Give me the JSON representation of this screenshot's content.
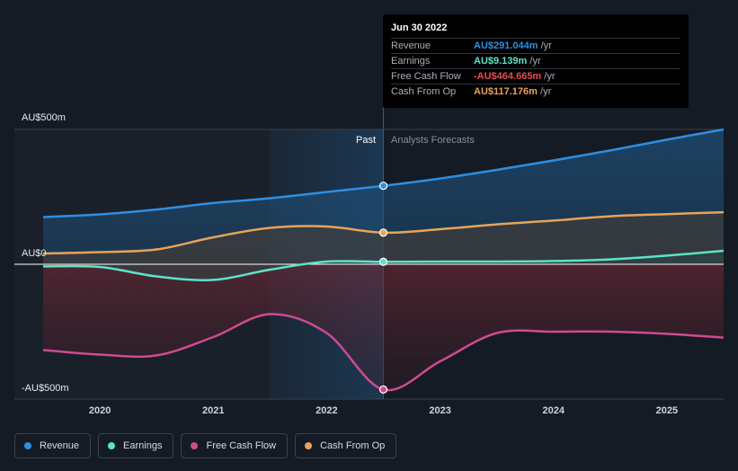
{
  "chart_data": {
    "type": "line",
    "x_ticks": [
      "2020",
      "2021",
      "2022",
      "2023",
      "2024",
      "2025"
    ],
    "y_labels": [
      "AU$500m",
      "AU$0",
      "-AU$500m"
    ],
    "ylim": [
      -500,
      500
    ],
    "regions": {
      "past_label": "Past",
      "forecast_label": "Analysts Forecasts"
    },
    "series": [
      {
        "name": "Revenue",
        "color": "#2d8fe3",
        "points": [
          [
            2019.5,
            175
          ],
          [
            2020.0,
            185
          ],
          [
            2020.5,
            203
          ],
          [
            2021.0,
            227
          ],
          [
            2021.5,
            245
          ],
          [
            2022.0,
            268
          ],
          [
            2022.5,
            291
          ],
          [
            2023.0,
            318
          ],
          [
            2023.5,
            350
          ],
          [
            2024.0,
            385
          ],
          [
            2024.5,
            422
          ],
          [
            2025.0,
            462
          ],
          [
            2025.5,
            500
          ]
        ]
      },
      {
        "name": "Earnings",
        "color": "#5ce3c8",
        "points": [
          [
            2019.5,
            -8
          ],
          [
            2020.0,
            -10
          ],
          [
            2020.5,
            -45
          ],
          [
            2021.0,
            -58
          ],
          [
            2021.5,
            -20
          ],
          [
            2022.0,
            10
          ],
          [
            2022.5,
            9.139
          ],
          [
            2023.0,
            10
          ],
          [
            2023.5,
            10
          ],
          [
            2024.0,
            12
          ],
          [
            2024.5,
            18
          ],
          [
            2025.0,
            32
          ],
          [
            2025.5,
            50
          ]
        ]
      },
      {
        "name": "Free Cash Flow",
        "color": "#cf4a91",
        "points": [
          [
            2019.5,
            -318
          ],
          [
            2020.0,
            -335
          ],
          [
            2020.5,
            -338
          ],
          [
            2021.0,
            -270
          ],
          [
            2021.5,
            -185
          ],
          [
            2022.0,
            -255
          ],
          [
            2022.5,
            -464.665
          ],
          [
            2023.0,
            -360
          ],
          [
            2023.5,
            -255
          ],
          [
            2024.0,
            -250
          ],
          [
            2024.5,
            -250
          ],
          [
            2025.0,
            -258
          ],
          [
            2025.5,
            -272
          ]
        ]
      },
      {
        "name": "Cash From Op",
        "color": "#e5a45b",
        "points": [
          [
            2019.5,
            40
          ],
          [
            2020.0,
            45
          ],
          [
            2020.5,
            55
          ],
          [
            2021.0,
            100
          ],
          [
            2021.5,
            135
          ],
          [
            2022.0,
            140
          ],
          [
            2022.5,
            117.176
          ],
          [
            2023.0,
            130
          ],
          [
            2023.5,
            148
          ],
          [
            2024.0,
            162
          ],
          [
            2024.5,
            178
          ],
          [
            2025.0,
            186
          ],
          [
            2025.5,
            193
          ]
        ]
      }
    ],
    "highlight_x": 2022.5,
    "tooltip": {
      "date": "Jun 30 2022",
      "rows": [
        {
          "name": "Revenue",
          "value": "AU$291.044m",
          "unit": "/yr",
          "color": "#2d8fe3"
        },
        {
          "name": "Earnings",
          "value": "AU$9.139m",
          "unit": "/yr",
          "color": "#5ce3c8"
        },
        {
          "name": "Free Cash Flow",
          "value": "-AU$464.665m",
          "unit": "/yr",
          "color": "#e64d4d"
        },
        {
          "name": "Cash From Op",
          "value": "AU$117.176m",
          "unit": "/yr",
          "color": "#e5a45b"
        }
      ]
    },
    "legend": [
      {
        "label": "Revenue",
        "color": "#2d8fe3"
      },
      {
        "label": "Earnings",
        "color": "#5ce3c8"
      },
      {
        "label": "Free Cash Flow",
        "color": "#cf4a91"
      },
      {
        "label": "Cash From Op",
        "color": "#e5a45b"
      }
    ]
  }
}
